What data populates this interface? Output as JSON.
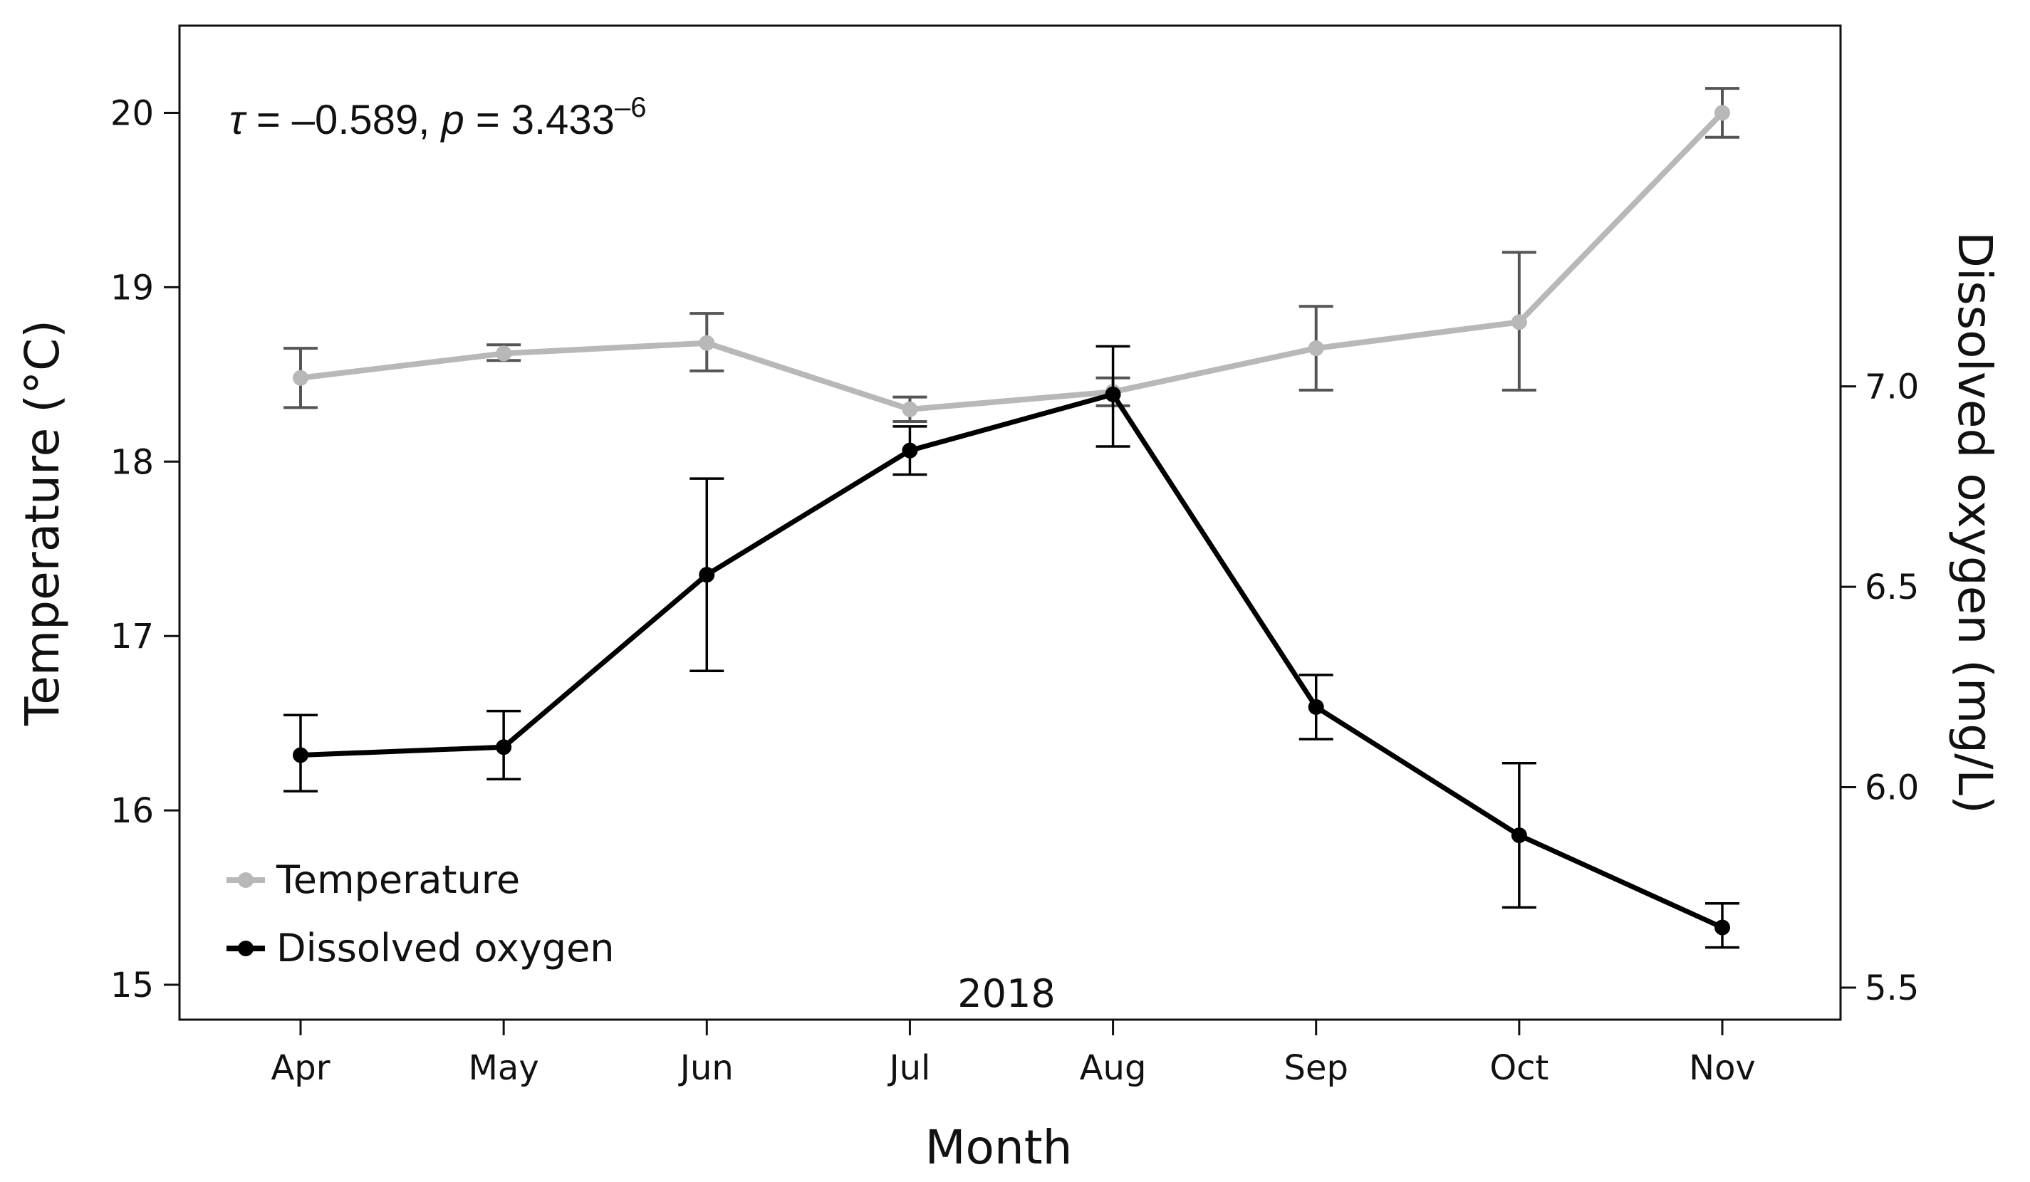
{
  "chart_data": {
    "type": "line",
    "title": "",
    "xlabel": "Month",
    "ylabel": "Temperature (°C)",
    "y2label": "Dissolved oxygen (mg/L)",
    "subtitle": "2018",
    "annotation": {
      "tau_symbol": "τ",
      "tau_value": " = –0.589, ",
      "p_symbol": "p",
      "p_value": " = 3.433",
      "p_exponent": "–6"
    },
    "categories": [
      "Apr",
      "May",
      "Jun",
      "Jul",
      "Aug",
      "Sep",
      "Oct",
      "Nov"
    ],
    "ylim": [
      14.8,
      20.5
    ],
    "yticks": [
      15,
      16,
      17,
      18,
      19,
      20
    ],
    "y2lim": [
      5.42,
      7.9
    ],
    "y2ticks": [
      5.5,
      6.0,
      6.5,
      7.0
    ],
    "y2tick_labels": [
      "5.5",
      "6.0",
      "6.5",
      "7.0"
    ],
    "series": [
      {
        "name": "Temperature",
        "axis": "left",
        "color": "#b8b8b8",
        "errorbar_color": "#555555",
        "values": [
          18.48,
          18.62,
          18.68,
          18.3,
          18.4,
          18.65,
          18.8,
          20.0
        ],
        "lower": [
          18.31,
          18.58,
          18.52,
          18.23,
          18.32,
          18.41,
          18.41,
          19.86
        ],
        "upper": [
          18.65,
          18.67,
          18.85,
          18.37,
          18.48,
          18.89,
          19.2,
          20.14
        ]
      },
      {
        "name": "Dissolved oxygen",
        "axis": "right",
        "color": "#000000",
        "errorbar_color": "#000000",
        "values": [
          6.08,
          6.1,
          6.53,
          6.84,
          6.98,
          6.2,
          5.88,
          5.65
        ],
        "lower": [
          5.99,
          6.02,
          6.29,
          6.78,
          6.85,
          6.12,
          5.7,
          5.6
        ],
        "upper": [
          6.18,
          6.19,
          6.77,
          6.9,
          7.1,
          6.28,
          6.06,
          5.71
        ]
      }
    ],
    "legend_position": "bottom-left"
  }
}
